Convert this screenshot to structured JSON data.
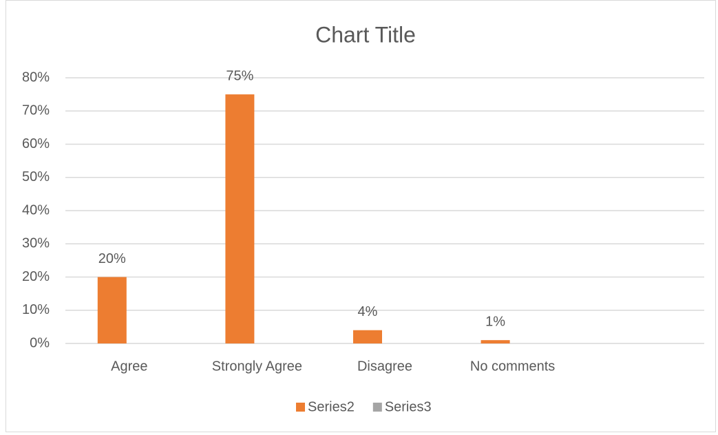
{
  "chart_data": {
    "type": "bar",
    "title": "Chart Title",
    "categories": [
      "Agree",
      "Strongly Agree",
      "Disagree",
      "No comments",
      null
    ],
    "series": [
      {
        "name": "Series2",
        "color": "#ed7d31",
        "values": [
          20,
          75,
          4,
          1,
          null
        ],
        "value_labels": [
          "20%",
          "75%",
          "4%",
          "1%",
          null
        ]
      },
      {
        "name": "Series3",
        "color": "#a5a5a5",
        "values": [
          null,
          null,
          null,
          null,
          null
        ]
      }
    ],
    "ylim": [
      0,
      80
    ],
    "yticks": [
      {
        "value": 0,
        "label": "0%"
      },
      {
        "value": 10,
        "label": "10%"
      },
      {
        "value": 20,
        "label": "20%"
      },
      {
        "value": 30,
        "label": "30%"
      },
      {
        "value": 40,
        "label": "40%"
      },
      {
        "value": 50,
        "label": "50%"
      },
      {
        "value": 60,
        "label": "60%"
      },
      {
        "value": 70,
        "label": "70%"
      },
      {
        "value": 80,
        "label": "80%"
      }
    ],
    "grid": true,
    "legend": "bottom"
  }
}
